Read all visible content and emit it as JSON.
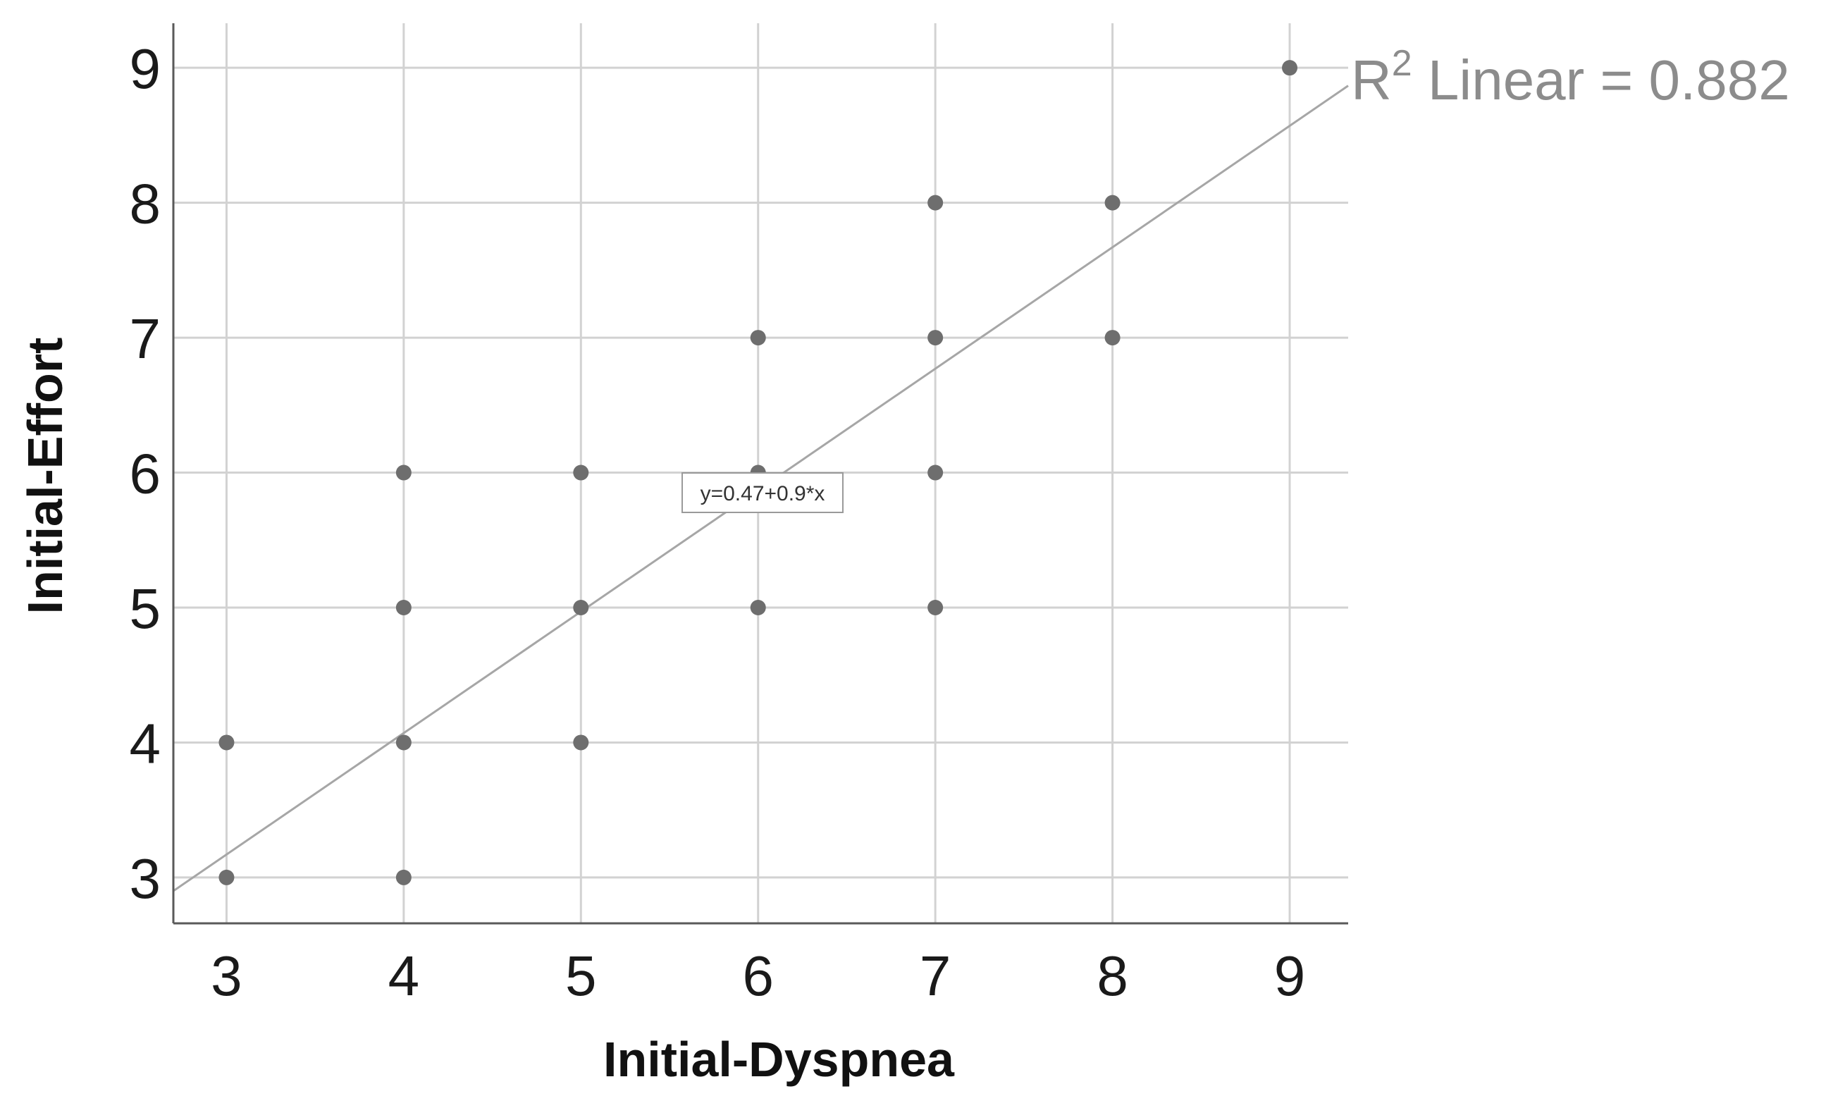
{
  "chart_data": {
    "type": "scatter",
    "xlabel": "Initial-Dyspnea",
    "ylabel": "Initial-Effort",
    "xlim": [
      2.7,
      9.33
    ],
    "ylim": [
      2.66,
      9.33
    ],
    "xticks": [
      3,
      4,
      5,
      6,
      7,
      8,
      9
    ],
    "yticks": [
      3,
      4,
      5,
      6,
      7,
      8,
      9
    ],
    "xtick_labels": [
      "3",
      "4",
      "5",
      "6",
      "7",
      "8",
      "9"
    ],
    "ytick_labels": [
      "3",
      "4",
      "5",
      "6",
      "7",
      "8",
      "9"
    ],
    "grid": true,
    "points": [
      {
        "x": 3,
        "y": 3
      },
      {
        "x": 3,
        "y": 4
      },
      {
        "x": 4,
        "y": 3
      },
      {
        "x": 4,
        "y": 4
      },
      {
        "x": 4,
        "y": 5
      },
      {
        "x": 4,
        "y": 6
      },
      {
        "x": 5,
        "y": 4
      },
      {
        "x": 5,
        "y": 5
      },
      {
        "x": 5,
        "y": 6
      },
      {
        "x": 6,
        "y": 5
      },
      {
        "x": 6,
        "y": 6
      },
      {
        "x": 6,
        "y": 7
      },
      {
        "x": 7,
        "y": 5
      },
      {
        "x": 7,
        "y": 6
      },
      {
        "x": 7,
        "y": 7
      },
      {
        "x": 7,
        "y": 8
      },
      {
        "x": 8,
        "y": 7
      },
      {
        "x": 8,
        "y": 8
      },
      {
        "x": 9,
        "y": 9
      }
    ],
    "fit": {
      "intercept": 0.47,
      "slope": 0.9
    },
    "fit_label": "y=0.47+0.9*x",
    "r2_prefix": "R",
    "r2_superscript": "2",
    "r2_suffix": " Linear = 0.882",
    "colors": {
      "points": "#6e6e6e",
      "fit_line": "#a6a6a6",
      "grid": "#d2d2d2",
      "axis": "#595959",
      "r2_text": "#8c8c8c"
    }
  }
}
